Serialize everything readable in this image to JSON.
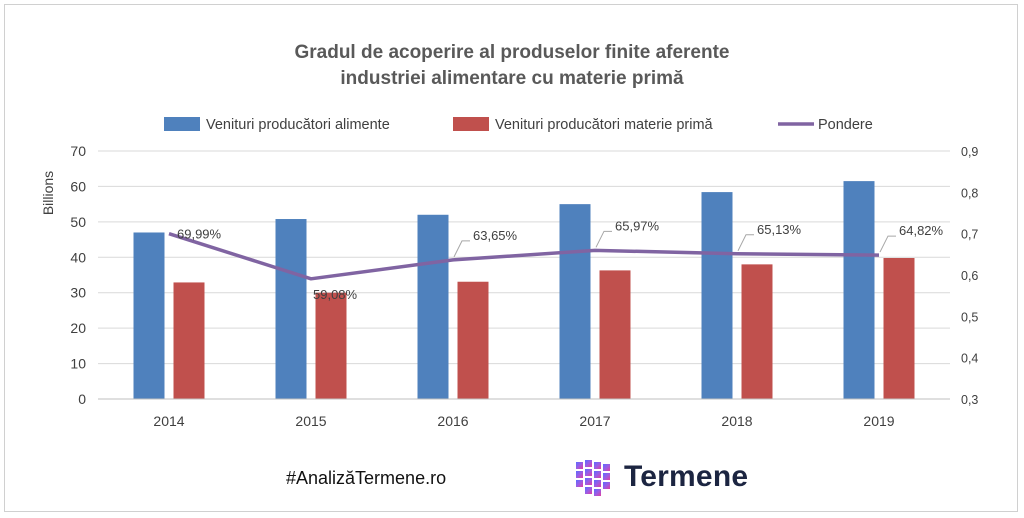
{
  "chart_data": {
    "type": "bar",
    "title_lines": [
      "Gradul de acoperire al produselor finite aferente",
      "industriei alimentare cu materie primă"
    ],
    "ylabel": "Billions",
    "categories": [
      "2014",
      "2015",
      "2016",
      "2017",
      "2018",
      "2019"
    ],
    "ylim": [
      0,
      70
    ],
    "y_ticks": [
      "0",
      "10",
      "20",
      "30",
      "40",
      "50",
      "60",
      "70"
    ],
    "y2lim": [
      0.3,
      0.9
    ],
    "y2_ticks": [
      "0,3",
      "0,4",
      "0,5",
      "0,6",
      "0,7",
      "0,8",
      "0,9"
    ],
    "grid": true,
    "legend_position": "top",
    "series": [
      {
        "name": "Venituri producători alimente",
        "kind": "bar",
        "color": "#4f81bd",
        "values": [
          47,
          50.8,
          52,
          55,
          58.4,
          61.5
        ]
      },
      {
        "name": "Venituri producători materie primă",
        "kind": "bar",
        "color": "#c0504d",
        "values": [
          32.9,
          30,
          33.1,
          36.3,
          38,
          39.8
        ]
      },
      {
        "name": "Pondere",
        "kind": "line",
        "axis": "right",
        "color": "#8064a2",
        "values": [
          0.6999,
          0.5908,
          0.6365,
          0.6597,
          0.6513,
          0.6482
        ],
        "labels": [
          "69,99%",
          "59,08%",
          "63,65%",
          "65,97%",
          "65,13%",
          "64,82%"
        ]
      }
    ]
  },
  "footer": {
    "hashtag": "#AnalizăTermene.ro",
    "brand_name": "Termene"
  },
  "icons": {
    "brand_logo": "cube-grid-logo-icon"
  },
  "colors": {
    "logo_blue": "#5b6bff",
    "logo_purple": "#9b5de5",
    "logo_pink": "#e040a0",
    "brand_text": "#1c2541"
  }
}
